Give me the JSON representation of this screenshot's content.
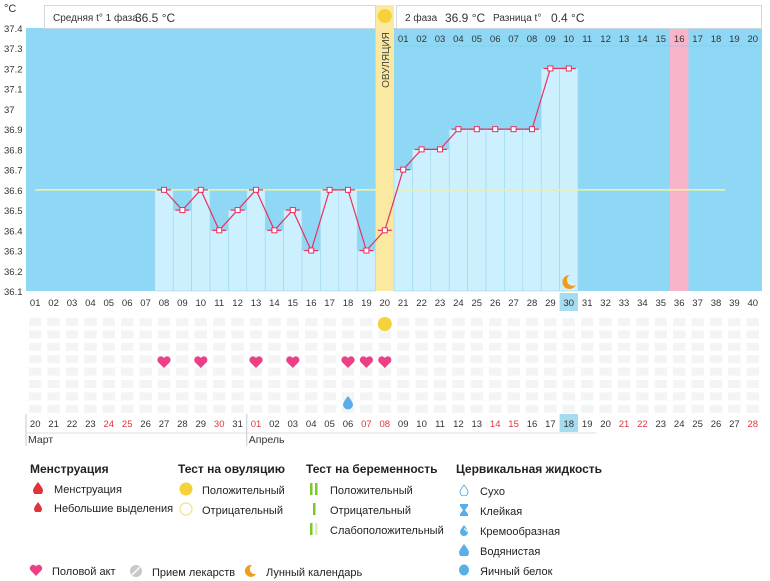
{
  "header": {
    "unit": "°C",
    "phase1_label": "Средняя t° 1 фаза",
    "phase1_value": "36.5 °C",
    "phase2_label": "2 фаза",
    "phase2_value": "36.9 °C",
    "diff_label": "Разница t°",
    "diff_value": "0.4 °C",
    "ovulation_label": "ОВУЛЯЦИЯ"
  },
  "chart_data": {
    "type": "line",
    "ylabel": "°C",
    "ylim": [
      36.1,
      37.4
    ],
    "yticks": [
      "36.1",
      "36.2",
      "36.3",
      "36.4",
      "36.5",
      "36.6",
      "36.7",
      "36.8",
      "36.9",
      "37",
      "37.1",
      "37.2",
      "37.3",
      "37.4"
    ],
    "cycle_days": [
      "01",
      "02",
      "03",
      "04",
      "05",
      "06",
      "07",
      "08",
      "09",
      "10",
      "11",
      "12",
      "13",
      "14",
      "15",
      "16",
      "17",
      "18",
      "19",
      "20",
      "21",
      "22",
      "23",
      "24",
      "25",
      "26",
      "27",
      "28",
      "29",
      "30",
      "31",
      "32",
      "33",
      "34",
      "35",
      "36",
      "37",
      "38",
      "39",
      "40"
    ],
    "series": [
      {
        "values": [
          null,
          null,
          null,
          null,
          null,
          null,
          null,
          36.6,
          36.5,
          36.6,
          36.4,
          36.5,
          36.6,
          36.4,
          36.5,
          36.3,
          36.6,
          36.6,
          36.3,
          36.4,
          36.7,
          36.8,
          36.8,
          36.9,
          36.9,
          36.9,
          36.9,
          36.9,
          37.2,
          37.2,
          null,
          null,
          null,
          null,
          null,
          null,
          null,
          null,
          null,
          null
        ]
      }
    ],
    "coverline": 36.6,
    "ovulation_day": 20,
    "current_day": 30,
    "highlight_day": 36,
    "phase2_top_labels": [
      "01",
      "02",
      "03",
      "04",
      "05",
      "06",
      "07",
      "08",
      "09",
      "10",
      "11",
      "12",
      "13",
      "14",
      "15",
      "16",
      "17",
      "18",
      "19",
      "20"
    ],
    "phase2_top_start_day": 21,
    "highlight_top_label": "16",
    "ovulation_test_positive_day": 20,
    "intercourse_days": [
      8,
      10,
      13,
      15,
      18,
      19,
      20
    ],
    "cervical_fluid_watery_days": [
      18
    ],
    "moon_day": 30,
    "calendar_dates": [
      "20",
      "21",
      "22",
      "23",
      "24",
      "25",
      "26",
      "27",
      "28",
      "29",
      "30",
      "31",
      "01",
      "02",
      "03",
      "04",
      "05",
      "06",
      "07",
      "08",
      "09",
      "10",
      "11",
      "12",
      "13",
      "14",
      "15",
      "16",
      "17",
      "18",
      "19",
      "20",
      "21",
      "22",
      "23",
      "24",
      "25",
      "26",
      "27",
      "28"
    ],
    "calendar_red_days": [
      5,
      6,
      11,
      13,
      19,
      20,
      26,
      27,
      33,
      34,
      40
    ],
    "months": [
      {
        "label": "Март",
        "start_day": 1
      },
      {
        "label": "Апрель",
        "start_day": 13
      }
    ],
    "colors": {
      "plot_bg": "#8fd8f5",
      "bar": "#ccf0fd",
      "line": "#e8315f",
      "coverline": "#f3ee9a",
      "ovulation": "#fbe9a1",
      "highlight": "#f8b4c8",
      "intercourse": "#ec3f86",
      "watery": "#5aaee6",
      "ovulation_test": "#f6d23a",
      "moon": "#f19b1c",
      "current_cell": "#a4ddf0"
    }
  },
  "legend": {
    "menstruation": {
      "title": "Менструация",
      "items": [
        "Менструация",
        "Небольшие выделения"
      ]
    },
    "ovulation_test": {
      "title": "Тест на овуляцию",
      "items": [
        "Положительный",
        "Отрицательный"
      ]
    },
    "pregnancy_test": {
      "title": "Тест на беременность",
      "items": [
        "Положительный",
        "Отрицательный",
        "Слабоположительный"
      ]
    },
    "cervical_fluid": {
      "title": "Цервикальная жидкость",
      "items": [
        "Сухо",
        "Клейкая",
        "Кремообразная",
        "Водянистая",
        "Яичный белок"
      ]
    },
    "bottom": [
      "Половой акт",
      "Прием лекарств",
      "Лунный календарь"
    ]
  }
}
